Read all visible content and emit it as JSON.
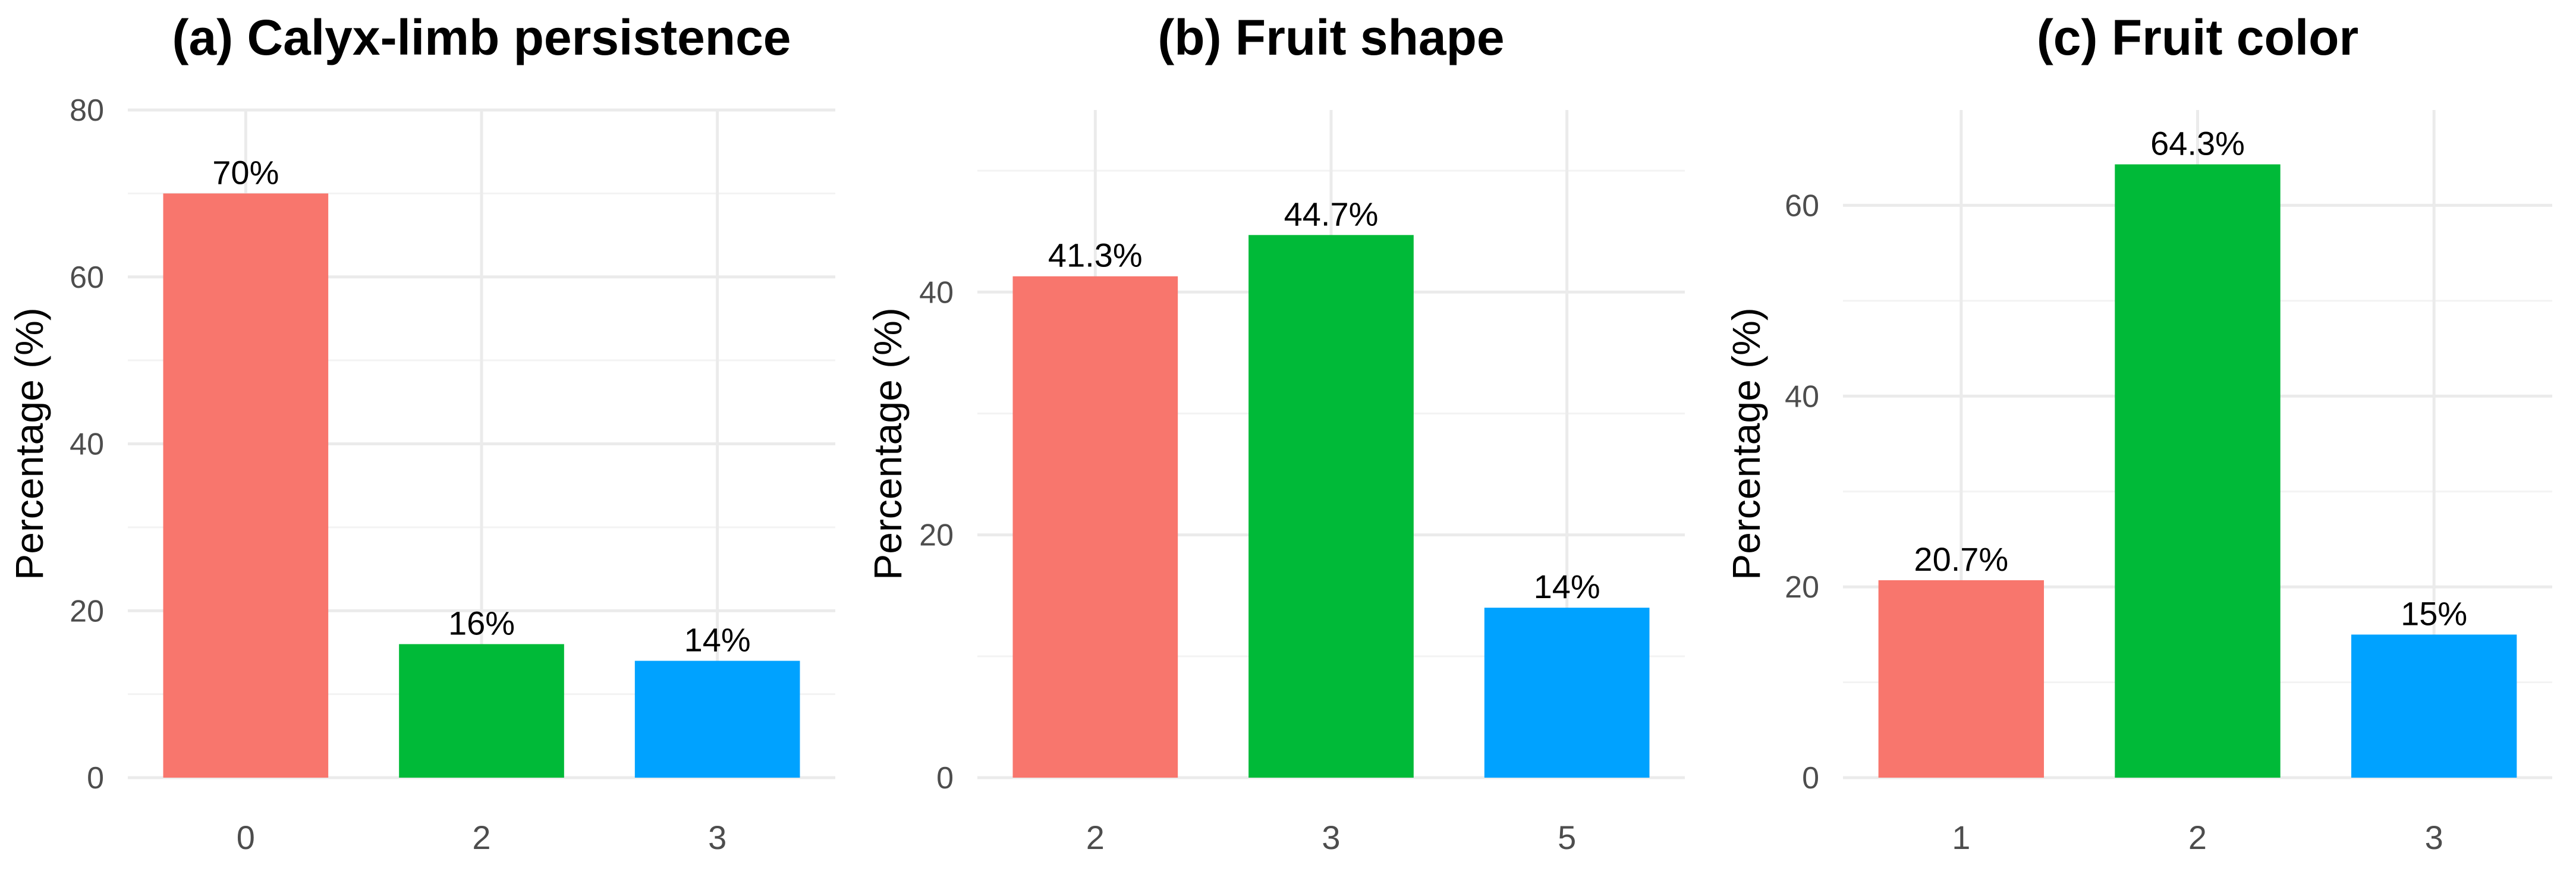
{
  "chart_data": [
    {
      "type": "bar",
      "title": "(a) Calyx-limb persistence",
      "xlabel": "",
      "ylabel": "Percentage (%)",
      "categories": [
        "0",
        "2",
        "3"
      ],
      "values": [
        70,
        16,
        14
      ],
      "labels": [
        "70%",
        "16%",
        "14%"
      ],
      "colors": [
        "#F8766D",
        "#00BA38",
        "#00A2FF"
      ],
      "ylim": [
        0,
        80
      ],
      "yticks": [
        0,
        20,
        40,
        60,
        80
      ],
      "ytick_labels": [
        "0",
        "20",
        "40",
        "60",
        "80"
      ],
      "grid": true,
      "legend": "none"
    },
    {
      "type": "bar",
      "title": "(b) Fruit shape",
      "xlabel": "",
      "ylabel": "Percentage (%)",
      "categories": [
        "2",
        "3",
        "5"
      ],
      "values": [
        41.3,
        44.7,
        14
      ],
      "labels": [
        "41.3%",
        "44.7%",
        "14%"
      ],
      "colors": [
        "#F8766D",
        "#00BA38",
        "#00A2FF"
      ],
      "ylim": [
        0,
        55
      ],
      "yticks": [
        0,
        20,
        40
      ],
      "ytick_labels": [
        "0",
        "20",
        "40"
      ],
      "grid": true,
      "legend": "none"
    },
    {
      "type": "bar",
      "title": "(c) Fruit color",
      "xlabel": "",
      "ylabel": "Percentage (%)",
      "categories": [
        "1",
        "2",
        "3"
      ],
      "values": [
        20.7,
        64.3,
        15
      ],
      "labels": [
        "20.7%",
        "64.3%",
        "15%"
      ],
      "colors": [
        "#F8766D",
        "#00BA38",
        "#00A2FF"
      ],
      "ylim": [
        0,
        70
      ],
      "yticks": [
        0,
        20,
        40,
        60
      ],
      "ytick_labels": [
        "0",
        "20",
        "40",
        "60"
      ],
      "grid": true,
      "legend": "none"
    }
  ]
}
